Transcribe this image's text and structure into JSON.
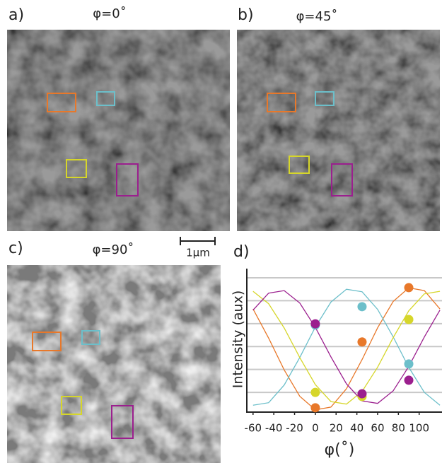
{
  "panels": [
    {
      "label": "a)",
      "title": "φ=0˚"
    },
    {
      "label": "b)",
      "title": "φ=45˚"
    },
    {
      "label": "c)",
      "title": "φ=90˚"
    }
  ],
  "scale_bar": "1μm",
  "chart_data": {
    "type": "scatter",
    "label": "d)",
    "x_label": "φ(˚)",
    "y_label": "Intensity (aux)",
    "xlim": [
      -66,
      122
    ],
    "xticks": [
      -60,
      -40,
      -20,
      0,
      20,
      40,
      60,
      80,
      100
    ],
    "ylim": [
      0.14,
      6.4
    ],
    "yticks": [
      1,
      2,
      3,
      4,
      5,
      6
    ],
    "ytick_labels": false,
    "grid": true,
    "series": [
      {
        "color": "#e8782a",
        "x": [
          0,
          45,
          90
        ],
        "values": [
          0.33,
          3.2,
          5.57
        ]
      },
      {
        "color": "#6cbfca",
        "x": [
          0,
          45,
          90
        ],
        "values": [
          3.94,
          4.74,
          2.24
        ]
      },
      {
        "color": "#d6d62a",
        "x": [
          0,
          45,
          90
        ],
        "values": [
          1.0,
          0.82,
          4.18
        ]
      },
      {
        "color": "#9b1f8e",
        "x": [
          0,
          45,
          90
        ],
        "values": [
          3.99,
          0.94,
          1.53
        ]
      }
    ],
    "fit_x": [
      -60,
      -45,
      -30,
      -15,
      0,
      15,
      30,
      45,
      60,
      75,
      90,
      105,
      120
    ],
    "fits": [
      {
        "color": "#e8782a",
        "values": [
          4.64,
          3.37,
          1.98,
          0.83,
          0.24,
          0.36,
          1.16,
          2.43,
          3.82,
          4.97,
          5.56,
          5.44,
          4.64
        ]
      },
      {
        "color": "#6cbfca",
        "values": [
          0.44,
          0.55,
          1.32,
          2.52,
          3.85,
          4.94,
          5.5,
          5.39,
          4.62,
          3.42,
          2.09,
          1.0,
          0.44
        ]
      },
      {
        "color": "#d6d62a",
        "values": [
          5.41,
          4.87,
          3.81,
          2.52,
          1.34,
          0.6,
          0.49,
          1.04,
          2.1,
          3.39,
          4.56,
          5.3,
          5.41
        ]
      },
      {
        "color": "#9b1f8e",
        "values": [
          4.59,
          5.33,
          5.44,
          4.9,
          3.84,
          2.55,
          1.37,
          0.63,
          0.52,
          1.07,
          2.13,
          3.42,
          4.59
        ]
      }
    ]
  }
}
